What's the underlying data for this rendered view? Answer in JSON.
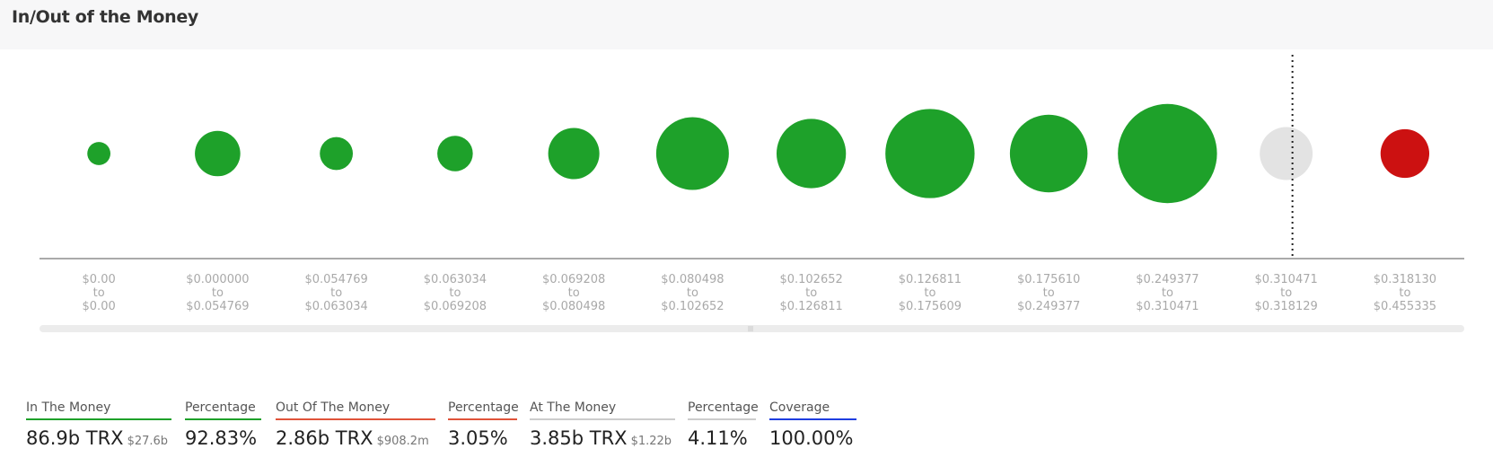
{
  "title": "In/Out of the Money",
  "colors": {
    "in_the_money": "#1ea12a",
    "at_the_money": "#e3e3e3",
    "out_of_the_money": "#cc1111",
    "coverage": "#1f3ee0",
    "in_underline": "#1ea12a",
    "out_underline": "#e0533a",
    "at_underline": "#cccccc"
  },
  "chart_data": {
    "type": "bubble",
    "bins": [
      {
        "from": "$0.00",
        "to": "$0.00",
        "status": "in",
        "size": 0.28
      },
      {
        "from": "$0.000000",
        "to": "$0.054769",
        "status": "in",
        "size": 0.55
      },
      {
        "from": "$0.054769",
        "to": "$0.063034",
        "status": "in",
        "size": 0.4
      },
      {
        "from": "$0.063034",
        "to": "$0.069208",
        "status": "in",
        "size": 0.43
      },
      {
        "from": "$0.069208",
        "to": "$0.080498",
        "status": "in",
        "size": 0.62
      },
      {
        "from": "$0.080498",
        "to": "$0.102652",
        "status": "in",
        "size": 0.88
      },
      {
        "from": "$0.102652",
        "to": "$0.126811",
        "status": "in",
        "size": 0.84
      },
      {
        "from": "$0.126811",
        "to": "$0.175609",
        "status": "in",
        "size": 1.08
      },
      {
        "from": "$0.175610",
        "to": "$0.249377",
        "status": "in",
        "size": 0.94
      },
      {
        "from": "$0.249377",
        "to": "$0.310471",
        "status": "in",
        "size": 1.2
      },
      {
        "from": "$0.310471",
        "to": "$0.318129",
        "status": "at",
        "size": 0.64
      },
      {
        "from": "$0.318130",
        "to": "$0.455335",
        "status": "out",
        "size": 0.59
      }
    ],
    "connector": "to",
    "current_price_bin_index": 10
  },
  "stats": [
    {
      "label": "In The Money",
      "value": "86.9b TRX",
      "sub": "$27.6b",
      "underline": "in_underline"
    },
    {
      "label": "Percentage",
      "value": "92.83%",
      "sub": "",
      "underline": "in_underline"
    },
    {
      "label": "Out Of The Money",
      "value": "2.86b TRX",
      "sub": "$908.2m",
      "underline": "out_underline"
    },
    {
      "label": "Percentage",
      "value": "3.05%",
      "sub": "",
      "underline": "out_underline"
    },
    {
      "label": "At The Money",
      "value": "3.85b TRX",
      "sub": "$1.22b",
      "underline": "at_underline"
    },
    {
      "label": "Percentage",
      "value": "4.11%",
      "sub": "",
      "underline": "at_underline"
    },
    {
      "label": "Coverage",
      "value": "100.00%",
      "sub": "",
      "underline": "coverage"
    }
  ]
}
